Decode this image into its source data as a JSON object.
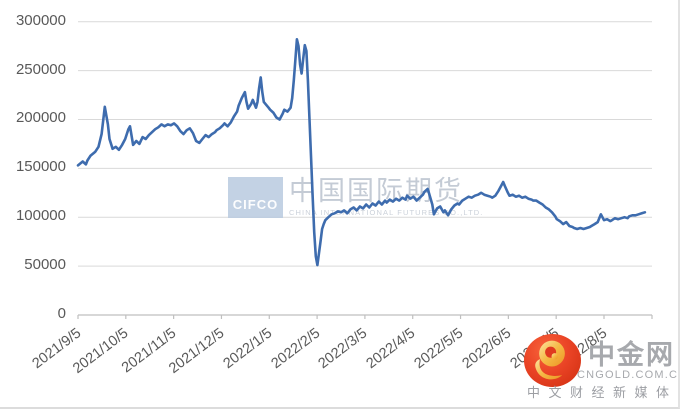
{
  "page": {
    "background": "#ffffff"
  },
  "colors": {
    "line": "#3E6CAE",
    "gridline": "#d9d9d9",
    "axis": "#bfbfbf",
    "label_text": "#595959"
  },
  "chart_data": {
    "type": "line",
    "title": "",
    "legend": "none",
    "grid": "horizontal-only",
    "ylim": [
      0,
      300000
    ],
    "y_tick_labels": [
      "0",
      "50000",
      "100000",
      "150000",
      "200000",
      "250000",
      "300000"
    ],
    "x_tick_labels": [
      "2021/9/5",
      "2021/10/5",
      "2021/11/5",
      "2021/12/5",
      "2022/1/5",
      "2022/2/5",
      "2022/3/5",
      "2022/4/5",
      "2022/5/5",
      "2022/6/5",
      "2022/7/5",
      "2022/8/5"
    ],
    "extra_unlabeled_end_tick": true,
    "series": [
      {
        "name": "",
        "color": "#3E6CAE",
        "points": [
          [
            "2021/9/5",
            153000
          ],
          [
            "2021/9/8",
            157000
          ],
          [
            "2021/9/10",
            154000
          ],
          [
            "2021/9/11",
            158000
          ],
          [
            "2021/9/13",
            163000
          ],
          [
            "2021/9/16",
            167000
          ],
          [
            "2021/9/18",
            172000
          ],
          [
            "2021/9/20",
            185000
          ],
          [
            "2021/9/22",
            213000
          ],
          [
            "2021/9/24",
            195000
          ],
          [
            "2021/9/25",
            180000
          ],
          [
            "2021/9/27",
            170000
          ],
          [
            "2021/9/29",
            172000
          ],
          [
            "2021/10/1",
            169000
          ],
          [
            "2021/10/3",
            174000
          ],
          [
            "2021/10/5",
            180000
          ],
          [
            "2021/10/7",
            190000
          ],
          [
            "2021/10/8",
            193000
          ],
          [
            "2021/10/10",
            174000
          ],
          [
            "2021/10/12",
            178000
          ],
          [
            "2021/10/14",
            175000
          ],
          [
            "2021/10/16",
            182000
          ],
          [
            "2021/10/18",
            180000
          ],
          [
            "2021/10/20",
            184000
          ],
          [
            "2021/10/22",
            187000
          ],
          [
            "2021/10/24",
            190000
          ],
          [
            "2021/10/26",
            192000
          ],
          [
            "2021/10/28",
            195000
          ],
          [
            "2021/10/30",
            193000
          ],
          [
            "2021/11/1",
            195000
          ],
          [
            "2021/11/3",
            194000
          ],
          [
            "2021/11/5",
            196000
          ],
          [
            "2021/11/7",
            193000
          ],
          [
            "2021/11/9",
            188000
          ],
          [
            "2021/11/11",
            185000
          ],
          [
            "2021/11/13",
            189000
          ],
          [
            "2021/11/15",
            191000
          ],
          [
            "2021/11/17",
            186000
          ],
          [
            "2021/11/19",
            178000
          ],
          [
            "2021/11/21",
            176000
          ],
          [
            "2021/11/23",
            180000
          ],
          [
            "2021/11/25",
            184000
          ],
          [
            "2021/11/27",
            182000
          ],
          [
            "2021/11/29",
            185000
          ],
          [
            "2021/12/1",
            187000
          ],
          [
            "2021/12/2",
            189000
          ],
          [
            "2021/12/4",
            191000
          ],
          [
            "2021/12/6",
            194000
          ],
          [
            "2021/12/7",
            196000
          ],
          [
            "2021/12/9",
            193000
          ],
          [
            "2021/12/11",
            197000
          ],
          [
            "2021/12/13",
            203000
          ],
          [
            "2021/12/15",
            208000
          ],
          [
            "2021/12/16",
            214000
          ],
          [
            "2021/12/18",
            222000
          ],
          [
            "2021/12/20",
            228000
          ],
          [
            "2021/12/21",
            218000
          ],
          [
            "2021/12/22",
            211000
          ],
          [
            "2021/12/24",
            216000
          ],
          [
            "2021/12/25",
            220000
          ],
          [
            "2021/12/27",
            212000
          ],
          [
            "2021/12/28",
            218000
          ],
          [
            "2021/12/29",
            232000
          ],
          [
            "2021/12/30",
            243000
          ],
          [
            "2021/12/31",
            228000
          ],
          [
            "2022/1/1",
            218000
          ],
          [
            "2022/1/3",
            214000
          ],
          [
            "2022/1/4",
            212000
          ],
          [
            "2022/1/5",
            210000
          ],
          [
            "2022/1/7",
            207000
          ],
          [
            "2022/1/9",
            202000
          ],
          [
            "2022/1/11",
            200000
          ],
          [
            "2022/1/13",
            206000
          ],
          [
            "2022/1/14",
            210000
          ],
          [
            "2022/1/16",
            208000
          ],
          [
            "2022/1/18",
            212000
          ],
          [
            "2022/1/19",
            222000
          ],
          [
            "2022/1/20",
            240000
          ],
          [
            "2022/1/21",
            260000
          ],
          [
            "2022/1/22",
            282000
          ],
          [
            "2022/1/23",
            275000
          ],
          [
            "2022/1/24",
            256000
          ],
          [
            "2022/1/25",
            247000
          ],
          [
            "2022/1/26",
            262000
          ],
          [
            "2022/1/27",
            276000
          ],
          [
            "2022/1/28",
            270000
          ],
          [
            "2022/1/29",
            240000
          ],
          [
            "2022/1/30",
            200000
          ],
          [
            "2022/1/31",
            160000
          ],
          [
            "2022/2/1",
            120000
          ],
          [
            "2022/2/2",
            85000
          ],
          [
            "2022/2/3",
            60000
          ],
          [
            "2022/2/4",
            51000
          ],
          [
            "2022/2/6",
            75000
          ],
          [
            "2022/2/7",
            88000
          ],
          [
            "2022/2/8",
            93000
          ],
          [
            "2022/2/9",
            97000
          ],
          [
            "2022/2/11",
            100000
          ],
          [
            "2022/2/13",
            103000
          ],
          [
            "2022/2/15",
            104000
          ],
          [
            "2022/2/17",
            106000
          ],
          [
            "2022/2/19",
            105000
          ],
          [
            "2022/2/21",
            107000
          ],
          [
            "2022/2/23",
            104000
          ],
          [
            "2022/2/25",
            108000
          ],
          [
            "2022/2/27",
            110000
          ],
          [
            "2022/3/1",
            107000
          ],
          [
            "2022/3/3",
            111000
          ],
          [
            "2022/3/5",
            109000
          ],
          [
            "2022/3/7",
            113000
          ],
          [
            "2022/3/9",
            110000
          ],
          [
            "2022/3/11",
            114000
          ],
          [
            "2022/3/13",
            112000
          ],
          [
            "2022/3/15",
            116000
          ],
          [
            "2022/3/17",
            113000
          ],
          [
            "2022/3/19",
            117000
          ],
          [
            "2022/3/20",
            115000
          ],
          [
            "2022/3/22",
            118000
          ],
          [
            "2022/3/24",
            116000
          ],
          [
            "2022/3/26",
            119000
          ],
          [
            "2022/3/28",
            117000
          ],
          [
            "2022/3/30",
            120000
          ],
          [
            "2022/4/1",
            118000
          ],
          [
            "2022/4/2",
            122000
          ],
          [
            "2022/4/4",
            119000
          ],
          [
            "2022/4/6",
            121000
          ],
          [
            "2022/4/8",
            117000
          ],
          [
            "2022/4/10",
            120000
          ],
          [
            "2022/4/12",
            123000
          ],
          [
            "2022/4/13",
            126000
          ],
          [
            "2022/4/15",
            129000
          ],
          [
            "2022/4/16",
            124000
          ],
          [
            "2022/4/18",
            113000
          ],
          [
            "2022/4/19",
            103000
          ],
          [
            "2022/4/21",
            109000
          ],
          [
            "2022/4/23",
            111000
          ],
          [
            "2022/4/25",
            105000
          ],
          [
            "2022/4/26",
            107000
          ],
          [
            "2022/4/28",
            102000
          ],
          [
            "2022/4/30",
            108000
          ],
          [
            "2022/5/2",
            112000
          ],
          [
            "2022/5/4",
            114000
          ],
          [
            "2022/5/5",
            113000
          ],
          [
            "2022/5/7",
            117000
          ],
          [
            "2022/5/9",
            119000
          ],
          [
            "2022/5/11",
            121000
          ],
          [
            "2022/5/13",
            120000
          ],
          [
            "2022/5/15",
            122000
          ],
          [
            "2022/5/17",
            123000
          ],
          [
            "2022/5/19",
            125000
          ],
          [
            "2022/5/21",
            123000
          ],
          [
            "2022/5/23",
            122000
          ],
          [
            "2022/5/25",
            121000
          ],
          [
            "2022/5/26",
            120000
          ],
          [
            "2022/5/28",
            122000
          ],
          [
            "2022/5/30",
            127000
          ],
          [
            "2022/6/1",
            133000
          ],
          [
            "2022/6/2",
            136000
          ],
          [
            "2022/6/3",
            132000
          ],
          [
            "2022/6/5",
            125000
          ],
          [
            "2022/6/6",
            122000
          ],
          [
            "2022/6/8",
            123000
          ],
          [
            "2022/6/10",
            121000
          ],
          [
            "2022/6/12",
            122000
          ],
          [
            "2022/6/14",
            120000
          ],
          [
            "2022/6/16",
            121000
          ],
          [
            "2022/6/18",
            119000
          ],
          [
            "2022/6/20",
            118000
          ],
          [
            "2022/6/21",
            117000
          ],
          [
            "2022/6/23",
            117000
          ],
          [
            "2022/6/25",
            115000
          ],
          [
            "2022/6/27",
            113000
          ],
          [
            "2022/6/29",
            110000
          ],
          [
            "2022/7/1",
            108000
          ],
          [
            "2022/7/3",
            105000
          ],
          [
            "2022/7/5",
            101000
          ],
          [
            "2022/7/6",
            98000
          ],
          [
            "2022/7/8",
            96000
          ],
          [
            "2022/7/10",
            93000
          ],
          [
            "2022/7/12",
            95000
          ],
          [
            "2022/7/14",
            91000
          ],
          [
            "2022/7/16",
            90000
          ],
          [
            "2022/7/17",
            89000
          ],
          [
            "2022/7/19",
            88000
          ],
          [
            "2022/7/21",
            89000
          ],
          [
            "2022/7/23",
            88000
          ],
          [
            "2022/7/25",
            89000
          ],
          [
            "2022/7/27",
            90000
          ],
          [
            "2022/7/28",
            91000
          ],
          [
            "2022/7/30",
            93000
          ],
          [
            "2022/8/1",
            95000
          ],
          [
            "2022/8/3",
            103000
          ],
          [
            "2022/8/5",
            97000
          ],
          [
            "2022/8/7",
            98000
          ],
          [
            "2022/8/9",
            96000
          ],
          [
            "2022/8/10",
            97000
          ],
          [
            "2022/8/12",
            99000
          ],
          [
            "2022/8/14",
            98000
          ],
          [
            "2022/8/16",
            99000
          ],
          [
            "2022/8/18",
            100000
          ],
          [
            "2022/8/20",
            99000
          ],
          [
            "2022/8/21",
            101000
          ],
          [
            "2022/8/23",
            102000
          ],
          [
            "2022/8/25",
            102000
          ],
          [
            "2022/8/27",
            103000
          ],
          [
            "2022/8/29",
            104000
          ],
          [
            "2022/8/31",
            105000
          ]
        ]
      }
    ]
  },
  "watermark_center": {
    "logo_abbr": "CIFCO",
    "title_cn": "中国国际期货",
    "subtitle_en": "CHINA INTERNATIONAL FUTURES CO.,LTD."
  },
  "watermark_brand": {
    "site_cn": "中金网",
    "site_domain": "CNGOLD.COM.CN",
    "tagline_cn": "中文财经新媒体",
    "logo_icon": "gold-swirl-on-red-circle"
  }
}
